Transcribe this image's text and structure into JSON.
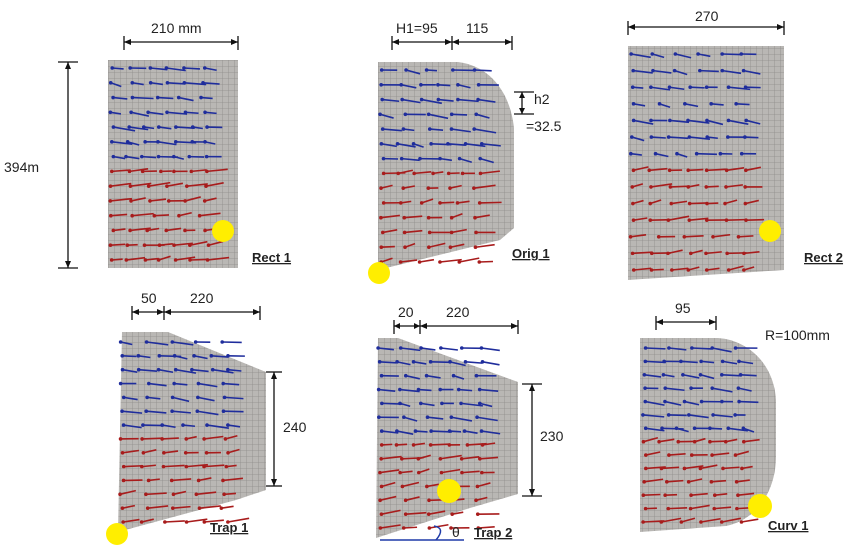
{
  "figure": {
    "colors": {
      "mesh_fill": "#b9b7b4",
      "mesh_line": "#8e8c8a",
      "arrow_blue": "#1f2d9c",
      "arrow_red": "#a81c1c",
      "marker_yellow": "#ffee00",
      "dim_line": "#111111",
      "angle_arc": "#1f3aa8"
    },
    "panels": [
      {
        "id": "rect1",
        "label": "Rect 1",
        "dims": {
          "top": "210 mm",
          "left": "394m"
        }
      },
      {
        "id": "orig1",
        "label": "Orig 1",
        "dims": {
          "top_a": "H1=95",
          "top_b": "115",
          "side_a": "h2",
          "side_b": "=32.5"
        }
      },
      {
        "id": "rect2",
        "label": "Rect 2",
        "dims": {
          "top": "270"
        }
      },
      {
        "id": "trap1",
        "label": "Trap 1",
        "dims": {
          "top_a": "50",
          "top_b": "220",
          "right": "240"
        }
      },
      {
        "id": "trap2",
        "label": "Trap 2",
        "dims": {
          "top_a": "20",
          "top_b": "220",
          "right": "230",
          "angle": "θ"
        }
      },
      {
        "id": "curv1",
        "label": "Curv 1",
        "dims": {
          "top": "95",
          "radius": "R=100mm"
        }
      }
    ]
  }
}
